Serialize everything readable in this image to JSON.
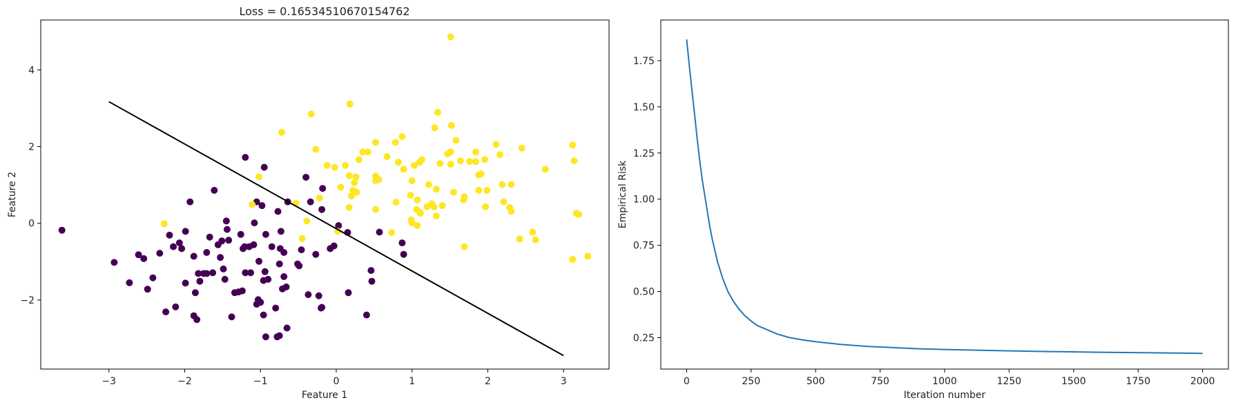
{
  "chart_data": [
    {
      "type": "scatter",
      "title": "Loss = 0.16534510670154762",
      "xlabel": "Feature 1",
      "ylabel": "Feature 2",
      "xlim": [
        -3.9,
        3.6
      ],
      "ylim": [
        -3.8,
        5.3
      ],
      "xticks": [
        -3,
        -2,
        -1,
        0,
        1,
        2,
        3
      ],
      "yticks": [
        -2,
        0,
        2,
        4
      ],
      "grid": false,
      "colors": {
        "class_0": "#440154",
        "class_1": "#fde725",
        "boundary": "#000000"
      },
      "boundary_line": {
        "x": [
          -3,
          3
        ],
        "y": [
          3.17,
          -3.45
        ]
      },
      "series": [
        {
          "class": 0,
          "points": [
            [
              -3.62,
              -0.18
            ],
            [
              -2.93,
              -1.02
            ],
            [
              -2.73,
              -1.55
            ],
            [
              -2.61,
              -0.82
            ],
            [
              -2.54,
              -0.92
            ],
            [
              -2.49,
              -1.72
            ],
            [
              -2.42,
              -1.42
            ],
            [
              -2.33,
              -0.78
            ],
            [
              -2.25,
              -2.31
            ],
            [
              -2.2,
              -0.31
            ],
            [
              -2.15,
              -0.61
            ],
            [
              -2.12,
              -2.18
            ],
            [
              -2.07,
              -0.51
            ],
            [
              -2.04,
              -0.66
            ],
            [
              -1.99,
              -0.21
            ],
            [
              -1.99,
              -1.56
            ],
            [
              -1.93,
              0.56
            ],
            [
              -1.88,
              -2.41
            ],
            [
              -1.88,
              -0.86
            ],
            [
              -1.86,
              -1.81
            ],
            [
              -1.84,
              -2.51
            ],
            [
              -1.82,
              -1.31
            ],
            [
              -1.8,
              -1.51
            ],
            [
              -1.75,
              -1.31
            ],
            [
              -1.71,
              -1.31
            ],
            [
              -1.71,
              -0.76
            ],
            [
              -1.67,
              -0.36
            ],
            [
              -1.63,
              -1.29
            ],
            [
              -1.61,
              0.86
            ],
            [
              -1.56,
              -0.56
            ],
            [
              -1.53,
              -0.89
            ],
            [
              -1.51,
              -0.46
            ],
            [
              -1.49,
              -1.19
            ],
            [
              -1.47,
              -1.46
            ],
            [
              -1.45,
              0.06
            ],
            [
              -1.44,
              -0.16
            ],
            [
              -1.42,
              -0.44
            ],
            [
              -1.38,
              -2.44
            ],
            [
              -1.34,
              -1.81
            ],
            [
              -1.29,
              -1.79
            ],
            [
              -1.26,
              -0.29
            ],
            [
              -1.24,
              -1.76
            ],
            [
              -1.23,
              -0.66
            ],
            [
              -1.21,
              -0.61
            ],
            [
              -1.2,
              -1.29
            ],
            [
              -1.2,
              1.72
            ],
            [
              -1.15,
              -0.61
            ],
            [
              -1.13,
              -1.29
            ],
            [
              -1.09,
              -0.56
            ],
            [
              -1.08,
              0.01
            ],
            [
              -1.05,
              0.56
            ],
            [
              -1.05,
              -2.11
            ],
            [
              -1.03,
              -1.99
            ],
            [
              -1.02,
              -0.99
            ],
            [
              -1,
              -2.06
            ],
            [
              -0.98,
              0.46
            ],
            [
              -0.96,
              -1.49
            ],
            [
              -0.96,
              -2.39
            ],
            [
              -0.95,
              1.46
            ],
            [
              -0.94,
              -1.26
            ],
            [
              -0.93,
              -0.29
            ],
            [
              -0.93,
              -2.96
            ],
            [
              -0.9,
              -1.46
            ],
            [
              -0.85,
              -0.61
            ],
            [
              -0.8,
              -2.21
            ],
            [
              -0.78,
              -2.96
            ],
            [
              -0.77,
              0.31
            ],
            [
              -0.75,
              -2.93
            ],
            [
              -0.75,
              -1.06
            ],
            [
              -0.74,
              -0.66
            ],
            [
              -0.73,
              -0.21
            ],
            [
              -0.71,
              -1.71
            ],
            [
              -0.69,
              -0.76
            ],
            [
              -0.69,
              -1.39
            ],
            [
              -0.66,
              -1.66
            ],
            [
              -0.65,
              -2.73
            ],
            [
              -0.64,
              0.56
            ],
            [
              -0.51,
              -1.06
            ],
            [
              -0.49,
              -1.11
            ],
            [
              -0.46,
              -0.69
            ],
            [
              -0.4,
              1.2
            ],
            [
              -0.37,
              -1.86
            ],
            [
              -0.34,
              0.56
            ],
            [
              -0.27,
              -0.81
            ],
            [
              -0.23,
              -1.89
            ],
            [
              -0.2,
              -2.21
            ],
            [
              -0.19,
              -2.19
            ],
            [
              -0.19,
              0.36
            ],
            [
              -0.18,
              0.91
            ],
            [
              -0.08,
              -0.66
            ],
            [
              -0.03,
              -0.59
            ],
            [
              0.03,
              -0.06
            ],
            [
              0.15,
              -0.24
            ],
            [
              0.16,
              -1.81
            ],
            [
              0.4,
              -2.39
            ],
            [
              0.46,
              -1.23
            ],
            [
              0.47,
              -1.51
            ],
            [
              0.57,
              -0.23
            ],
            [
              0.87,
              -0.51
            ],
            [
              0.89,
              -0.81
            ]
          ]
        },
        {
          "class": 1,
          "points": [
            [
              -2.27,
              -0.01
            ],
            [
              -1.11,
              0.49
            ],
            [
              -1.02,
              1.21
            ],
            [
              -0.72,
              2.37
            ],
            [
              -0.53,
              0.52
            ],
            [
              -0.45,
              -0.4
            ],
            [
              -0.39,
              0.06
            ],
            [
              -0.33,
              2.85
            ],
            [
              -0.27,
              1.93
            ],
            [
              -0.22,
              0.66
            ],
            [
              -0.12,
              1.51
            ],
            [
              -0.02,
              1.46
            ],
            [
              0.02,
              -0.21
            ],
            [
              0.06,
              0.94
            ],
            [
              0.12,
              1.51
            ],
            [
              0.17,
              0.41
            ],
            [
              0.17,
              1.24
            ],
            [
              0.18,
              3.11
            ],
            [
              0.2,
              0.71
            ],
            [
              0.22,
              0.86
            ],
            [
              0.24,
              1.06
            ],
            [
              0.26,
              1.21
            ],
            [
              0.27,
              0.81
            ],
            [
              0.3,
              1.66
            ],
            [
              0.35,
              1.86
            ],
            [
              0.42,
              1.86
            ],
            [
              0.52,
              1.11
            ],
            [
              0.52,
              0.36
            ],
            [
              0.52,
              2.11
            ],
            [
              0.52,
              1.23
            ],
            [
              0.56,
              1.14
            ],
            [
              0.67,
              1.74
            ],
            [
              0.73,
              -0.24
            ],
            [
              0.78,
              2.11
            ],
            [
              0.79,
              0.55
            ],
            [
              0.82,
              1.59
            ],
            [
              0.87,
              2.26
            ],
            [
              0.89,
              1.41
            ],
            [
              0.98,
              0.73
            ],
            [
              0.99,
              0.09
            ],
            [
              1,
              0.01
            ],
            [
              1,
              1.11
            ],
            [
              1.03,
              1.51
            ],
            [
              1.06,
              0.36
            ],
            [
              1.07,
              -0.06
            ],
            [
              1.07,
              0.61
            ],
            [
              1.1,
              1.59
            ],
            [
              1.1,
              0.29
            ],
            [
              1.11,
              0.26
            ],
            [
              1.13,
              1.66
            ],
            [
              1.2,
              0.43
            ],
            [
              1.22,
              1.01
            ],
            [
              1.26,
              0.51
            ],
            [
              1.29,
              0.43
            ],
            [
              1.3,
              2.49
            ],
            [
              1.32,
              0.89
            ],
            [
              1.32,
              0.19
            ],
            [
              1.34,
              2.89
            ],
            [
              1.37,
              1.56
            ],
            [
              1.4,
              0.46
            ],
            [
              1.47,
              1.81
            ],
            [
              1.51,
              1.86
            ],
            [
              1.51,
              1.54
            ],
            [
              1.52,
              2.55
            ],
            [
              1.51,
              4.86
            ],
            [
              1.55,
              0.81
            ],
            [
              1.58,
              2.16
            ],
            [
              1.64,
              1.63
            ],
            [
              1.68,
              0.61
            ],
            [
              1.69,
              0.69
            ],
            [
              1.69,
              -0.61
            ],
            [
              1.76,
              1.61
            ],
            [
              1.84,
              1.86
            ],
            [
              1.84,
              1.61
            ],
            [
              1.88,
              1.26
            ],
            [
              1.88,
              0.86
            ],
            [
              1.91,
              1.29
            ],
            [
              1.96,
              1.66
            ],
            [
              1.97,
              0.43
            ],
            [
              1.99,
              0.86
            ],
            [
              2.11,
              2.06
            ],
            [
              2.16,
              1.79
            ],
            [
              2.19,
              1.01
            ],
            [
              2.21,
              0.56
            ],
            [
              2.29,
              0.41
            ],
            [
              2.31,
              1.01
            ],
            [
              2.31,
              0.31
            ],
            [
              2.42,
              -0.41
            ],
            [
              2.45,
              1.96
            ],
            [
              2.59,
              -0.23
            ],
            [
              2.63,
              -0.43
            ],
            [
              2.76,
              1.41
            ],
            [
              3.12,
              2.04
            ],
            [
              3.12,
              -0.94
            ],
            [
              3.14,
              1.63
            ],
            [
              3.17,
              0.26
            ],
            [
              3.2,
              0.23
            ],
            [
              3.32,
              -0.86
            ]
          ]
        }
      ]
    },
    {
      "type": "line",
      "title": "",
      "xlabel": "Iteration number",
      "ylabel": "Empirical Risk",
      "xlim": [
        -100,
        2100
      ],
      "ylim": [
        0.08,
        1.97
      ],
      "xticks": [
        0,
        250,
        500,
        750,
        1000,
        1250,
        1500,
        1750,
        2000
      ],
      "yticks": [
        0.25,
        0.5,
        0.75,
        1.0,
        1.25,
        1.5,
        1.75
      ],
      "grid": false,
      "colors": {
        "line": "#1f77b4"
      },
      "x": [
        0,
        10,
        20,
        30,
        40,
        50,
        60,
        75,
        90,
        100,
        120,
        140,
        160,
        180,
        200,
        225,
        250,
        275,
        300,
        350,
        400,
        450,
        500,
        600,
        700,
        800,
        900,
        1000,
        1200,
        1400,
        1600,
        1800,
        2000
      ],
      "y": [
        1.865,
        1.73,
        1.6,
        1.47,
        1.34,
        1.22,
        1.11,
        0.98,
        0.85,
        0.78,
        0.66,
        0.57,
        0.5,
        0.45,
        0.41,
        0.37,
        0.34,
        0.315,
        0.3,
        0.27,
        0.25,
        0.238,
        0.228,
        0.213,
        0.203,
        0.196,
        0.19,
        0.186,
        0.18,
        0.175,
        0.171,
        0.168,
        0.165
      ]
    }
  ]
}
